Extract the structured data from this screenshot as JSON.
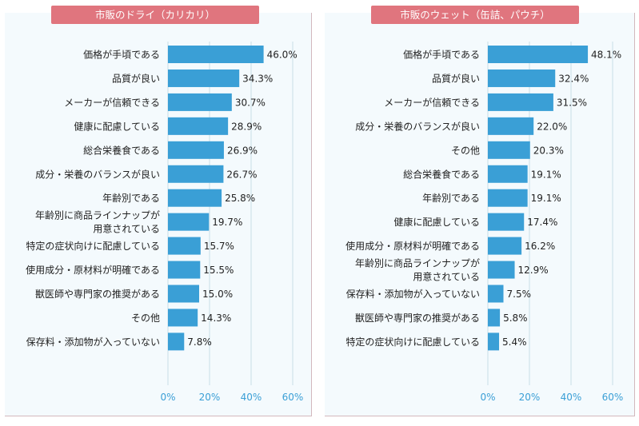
{
  "colors": {
    "bar": "#3a9fd6",
    "title_bg": "#e0757e",
    "panel_bg": "#f4fafd",
    "grid": "#c9dde8",
    "tick": "#3a9fd6",
    "panel_border": "#d3b8bd"
  },
  "chart_data": [
    {
      "type": "bar",
      "orientation": "horizontal",
      "title": "市販のドライ（カリカリ）",
      "xlim": [
        0,
        60
      ],
      "x_ticks": [
        "0%",
        "20%",
        "40%",
        "60%"
      ],
      "categories": [
        [
          "価格が手頃である"
        ],
        [
          "品質が良い"
        ],
        [
          "メーカーが信頼できる"
        ],
        [
          "健康に配慮している"
        ],
        [
          "総合栄養食である"
        ],
        [
          "成分・栄養のバランスが良い"
        ],
        [
          "年齢別である"
        ],
        [
          "年齢別に商品ラインナップが",
          "用意されている"
        ],
        [
          "特定の症状向けに配慮している"
        ],
        [
          "使用成分・原材料が明確である"
        ],
        [
          "獣医師や専門家の推奨がある"
        ],
        [
          "その他"
        ],
        [
          "保存料・添加物が入っていない"
        ]
      ],
      "values": [
        46.0,
        34.3,
        30.7,
        28.9,
        26.9,
        26.7,
        25.8,
        19.7,
        15.7,
        15.5,
        15.0,
        14.3,
        7.8
      ],
      "value_labels": [
        "46.0%",
        "34.3%",
        "30.7%",
        "28.9%",
        "26.9%",
        "26.7%",
        "25.8%",
        "19.7%",
        "15.7%",
        "15.5%",
        "15.0%",
        "14.3%",
        "7.8%"
      ]
    },
    {
      "type": "bar",
      "orientation": "horizontal",
      "title": "市販のウェット（缶詰、パウチ）",
      "xlim": [
        0,
        60
      ],
      "x_ticks": [
        "0%",
        "20%",
        "40%",
        "60%"
      ],
      "categories": [
        [
          "価格が手頃である"
        ],
        [
          "品質が良い"
        ],
        [
          "メーカーが信頼できる"
        ],
        [
          "成分・栄養のバランスが良い"
        ],
        [
          "その他"
        ],
        [
          "総合栄養食である"
        ],
        [
          "年齢別である"
        ],
        [
          "健康に配慮している"
        ],
        [
          "使用成分・原材料が明確である"
        ],
        [
          "年齢別に商品ラインナップが",
          "用意されている"
        ],
        [
          "保存料・添加物が入っていない"
        ],
        [
          "獣医師や専門家の推奨がある"
        ],
        [
          "特定の症状向けに配慮している"
        ]
      ],
      "values": [
        48.1,
        32.4,
        31.5,
        22.0,
        20.3,
        19.1,
        19.1,
        17.4,
        16.2,
        12.9,
        7.5,
        5.8,
        5.4
      ],
      "value_labels": [
        "48.1%",
        "32.4%",
        "31.5%",
        "22.0%",
        "20.3%",
        "19.1%",
        "19.1%",
        "17.4%",
        "16.2%",
        "12.9%",
        "7.5%",
        "5.8%",
        "5.4%"
      ]
    }
  ]
}
